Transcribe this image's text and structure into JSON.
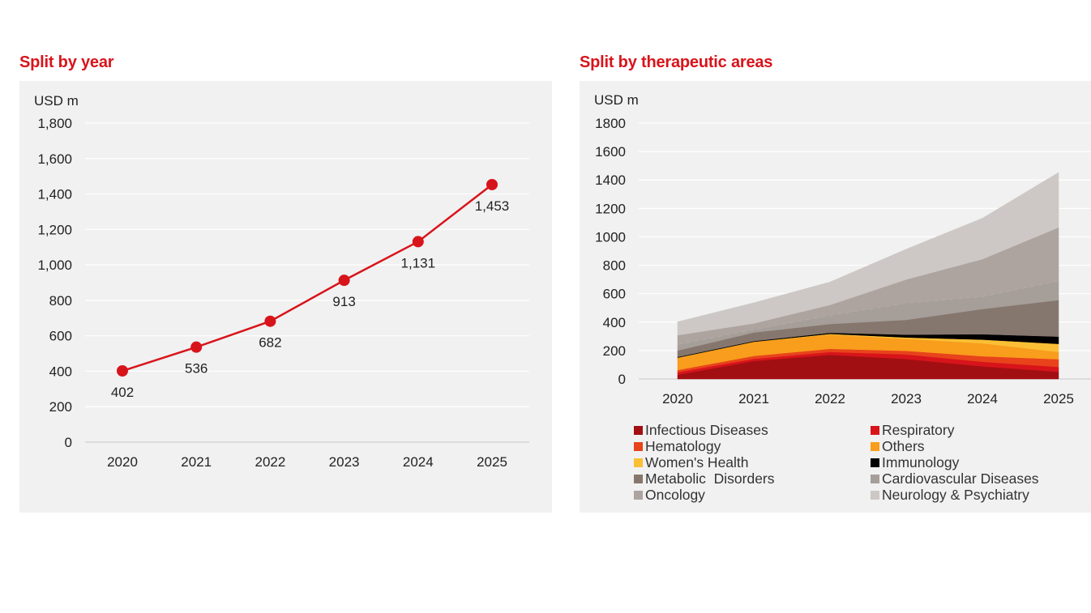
{
  "chart_data": [
    {
      "type": "line",
      "title": "Split by year",
      "ylabel": "USD m",
      "xlabel": "",
      "categories": [
        "2020",
        "2021",
        "2022",
        "2023",
        "2024",
        "2025"
      ],
      "values": [
        402,
        536,
        682,
        913,
        1131,
        1453
      ],
      "data_labels": [
        "402",
        "536",
        "682",
        "913",
        "1,131",
        "1,453"
      ],
      "ylim": [
        0,
        1800
      ],
      "yticks": [
        0,
        200,
        400,
        600,
        800,
        1000,
        1200,
        1400,
        1600,
        1800
      ],
      "ytick_labels": [
        "0",
        "200",
        "400",
        "600",
        "800",
        "1,000",
        "1,200",
        "1,400",
        "1,600",
        "1,800"
      ],
      "grid": true,
      "line_color": "#d8141b"
    },
    {
      "type": "area",
      "stacked": true,
      "title": "Split by therapeutic areas",
      "ylabel": "USD m",
      "xlabel": "",
      "categories": [
        "2020",
        "2021",
        "2022",
        "2023",
        "2024",
        "2025"
      ],
      "ylim": [
        0,
        1800
      ],
      "yticks": [
        0,
        200,
        400,
        600,
        800,
        1000,
        1200,
        1400,
        1600,
        1800
      ],
      "ytick_labels": [
        "0",
        "200",
        "400",
        "600",
        "800",
        "1000",
        "1200",
        "1400",
        "1600",
        "1800"
      ],
      "grid": true,
      "legend_position": "bottom",
      "series": [
        {
          "name": "Infectious Diseases",
          "color": "#a20f12",
          "values": [
            30,
            127,
            170,
            141,
            89,
            51
          ]
        },
        {
          "name": "Respiratory",
          "color": "#d8141b",
          "values": [
            18,
            15,
            20,
            32,
            32,
            34
          ]
        },
        {
          "name": "Hematology",
          "color": "#e8431b",
          "values": [
            15,
            20,
            22,
            25,
            39,
            54
          ]
        },
        {
          "name": "Others",
          "color": "#f99d1c",
          "values": [
            85,
            100,
            100,
            85,
            91,
            51
          ]
        },
        {
          "name": "Women's Health",
          "color": "#fbbf36",
          "values": [
            2,
            0,
            5,
            9,
            26,
            57
          ]
        },
        {
          "name": "Immunology",
          "color": "#000000",
          "values": [
            5,
            5,
            8,
            20,
            38,
            51
          ]
        },
        {
          "name": "Metabolic  Disorders",
          "color": "#86776e",
          "values": [
            45,
            60,
            62,
            104,
            177,
            257
          ]
        },
        {
          "name": "Cardiovascular Diseases",
          "color": "#a69e99",
          "values": [
            45,
            22,
            62,
            119,
            89,
            136
          ]
        },
        {
          "name": "Oncology",
          "color": "#ada49f",
          "values": [
            63,
            42,
            72,
            165,
            262,
            375
          ]
        },
        {
          "name": "Neurology & Psychiatry",
          "color": "#cdc8c5",
          "values": [
            94,
            145,
            161,
            213,
            288,
            387
          ]
        }
      ],
      "legend_order": [
        "Infectious Diseases",
        "Respiratory",
        "Hematology",
        "Others",
        "Women's Health",
        "Immunology",
        "Metabolic  Disorders",
        "Cardiovascular Diseases",
        "Oncology",
        "Neurology & Psychiatry"
      ]
    }
  ]
}
